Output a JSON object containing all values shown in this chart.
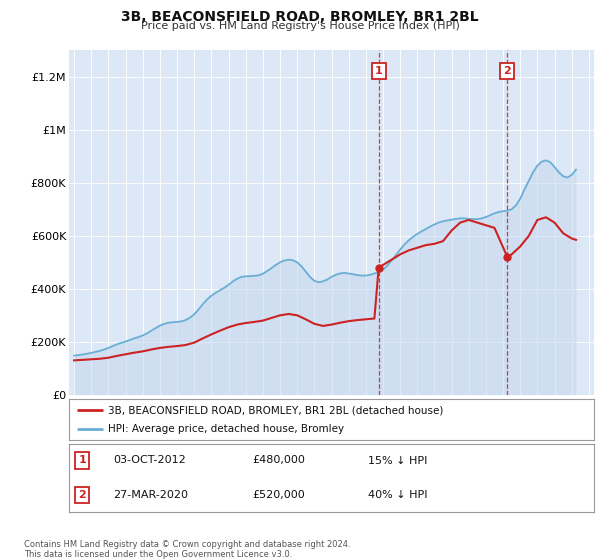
{
  "title": "3B, BEACONSFIELD ROAD, BROMLEY, BR1 2BL",
  "subtitle": "Price paid vs. HM Land Registry's House Price Index (HPI)",
  "ylim": [
    0,
    1300000
  ],
  "yticks": [
    0,
    200000,
    400000,
    600000,
    800000,
    1000000,
    1200000
  ],
  "ytick_labels": [
    "£0",
    "£200K",
    "£400K",
    "£600K",
    "£800K",
    "£1M",
    "£1.2M"
  ],
  "bg_color": "#dce8f5",
  "legend_label_red": "3B, BEACONSFIELD ROAD, BROMLEY, BR1 2BL (detached house)",
  "legend_label_blue": "HPI: Average price, detached house, Bromley",
  "annotation1_label": "1",
  "annotation1_date": "03-OCT-2012",
  "annotation1_price": "£480,000",
  "annotation1_pct": "15% ↓ HPI",
  "annotation2_label": "2",
  "annotation2_date": "27-MAR-2020",
  "annotation2_price": "£520,000",
  "annotation2_pct": "40% ↓ HPI",
  "copyright": "Contains HM Land Registry data © Crown copyright and database right 2024.\nThis data is licensed under the Open Government Licence v3.0.",
  "sale1_x": 2012.75,
  "sale1_y": 480000,
  "sale2_x": 2020.25,
  "sale2_y": 520000,
  "hpi_x": [
    1995.0,
    1995.25,
    1995.5,
    1995.75,
    1996.0,
    1996.25,
    1996.5,
    1996.75,
    1997.0,
    1997.25,
    1997.5,
    1997.75,
    1998.0,
    1998.25,
    1998.5,
    1998.75,
    1999.0,
    1999.25,
    1999.5,
    1999.75,
    2000.0,
    2000.25,
    2000.5,
    2000.75,
    2001.0,
    2001.25,
    2001.5,
    2001.75,
    2002.0,
    2002.25,
    2002.5,
    2002.75,
    2003.0,
    2003.25,
    2003.5,
    2003.75,
    2004.0,
    2004.25,
    2004.5,
    2004.75,
    2005.0,
    2005.25,
    2005.5,
    2005.75,
    2006.0,
    2006.25,
    2006.5,
    2006.75,
    2007.0,
    2007.25,
    2007.5,
    2007.75,
    2008.0,
    2008.25,
    2008.5,
    2008.75,
    2009.0,
    2009.25,
    2009.5,
    2009.75,
    2010.0,
    2010.25,
    2010.5,
    2010.75,
    2011.0,
    2011.25,
    2011.5,
    2011.75,
    2012.0,
    2012.25,
    2012.5,
    2012.75,
    2013.0,
    2013.25,
    2013.5,
    2013.75,
    2014.0,
    2014.25,
    2014.5,
    2014.75,
    2015.0,
    2015.25,
    2015.5,
    2015.75,
    2016.0,
    2016.25,
    2016.5,
    2016.75,
    2017.0,
    2017.25,
    2017.5,
    2017.75,
    2018.0,
    2018.25,
    2018.5,
    2018.75,
    2019.0,
    2019.25,
    2019.5,
    2019.75,
    2020.0,
    2020.25,
    2020.5,
    2020.75,
    2021.0,
    2021.25,
    2021.5,
    2021.75,
    2022.0,
    2022.25,
    2022.5,
    2022.75,
    2023.0,
    2023.25,
    2023.5,
    2023.75,
    2024.0,
    2024.25
  ],
  "hpi_y": [
    148000,
    150000,
    152000,
    155000,
    158000,
    162000,
    166000,
    171000,
    177000,
    184000,
    191000,
    196000,
    201000,
    207000,
    213000,
    218000,
    224000,
    232000,
    242000,
    252000,
    261000,
    268000,
    272000,
    274000,
    275000,
    277000,
    282000,
    291000,
    304000,
    322000,
    342000,
    360000,
    374000,
    385000,
    395000,
    404000,
    415000,
    428000,
    438000,
    445000,
    447000,
    448000,
    449000,
    451000,
    457000,
    467000,
    478000,
    490000,
    500000,
    507000,
    510000,
    508000,
    500000,
    485000,
    465000,
    445000,
    430000,
    425000,
    428000,
    435000,
    445000,
    453000,
    458000,
    460000,
    458000,
    455000,
    452000,
    450000,
    450000,
    453000,
    458000,
    463000,
    472000,
    487000,
    507000,
    527000,
    548000,
    567000,
    583000,
    596000,
    607000,
    617000,
    626000,
    635000,
    643000,
    650000,
    655000,
    658000,
    661000,
    664000,
    666000,
    666000,
    664000,
    663000,
    663000,
    666000,
    671000,
    678000,
    685000,
    690000,
    693000,
    695000,
    700000,
    715000,
    740000,
    775000,
    808000,
    840000,
    865000,
    880000,
    885000,
    878000,
    860000,
    840000,
    825000,
    820000,
    830000,
    850000
  ],
  "red_x": [
    1995.0,
    1995.5,
    1996.0,
    1996.5,
    1997.0,
    1997.5,
    1998.0,
    1998.5,
    1999.0,
    1999.5,
    2000.0,
    2000.5,
    2001.0,
    2001.5,
    2002.0,
    2002.5,
    2003.0,
    2003.5,
    2004.0,
    2004.5,
    2005.0,
    2005.5,
    2006.0,
    2006.5,
    2007.0,
    2007.5,
    2008.0,
    2008.5,
    2009.0,
    2009.5,
    2010.0,
    2010.5,
    2011.0,
    2011.5,
    2012.0,
    2012.5,
    2012.75,
    2013.0,
    2013.5,
    2014.0,
    2014.5,
    2015.0,
    2015.5,
    2016.0,
    2016.5,
    2017.0,
    2017.5,
    2018.0,
    2018.5,
    2019.0,
    2019.5,
    2020.25,
    2020.5,
    2021.0,
    2021.5,
    2022.0,
    2022.5,
    2023.0,
    2023.5,
    2024.0,
    2024.25
  ],
  "red_y": [
    130000,
    132000,
    134000,
    136000,
    140000,
    147000,
    153000,
    159000,
    164000,
    171000,
    177000,
    181000,
    184000,
    188000,
    197000,
    213000,
    228000,
    242000,
    255000,
    265000,
    271000,
    275000,
    280000,
    290000,
    300000,
    305000,
    300000,
    285000,
    268000,
    260000,
    265000,
    272000,
    278000,
    282000,
    285000,
    288000,
    480000,
    490000,
    510000,
    530000,
    545000,
    555000,
    565000,
    570000,
    580000,
    620000,
    650000,
    660000,
    650000,
    640000,
    630000,
    520000,
    530000,
    560000,
    600000,
    660000,
    670000,
    650000,
    610000,
    590000,
    585000
  ],
  "xlim_left": 1994.7,
  "xlim_right": 2025.3,
  "xticks_start": 1995,
  "xticks_end": 2025
}
